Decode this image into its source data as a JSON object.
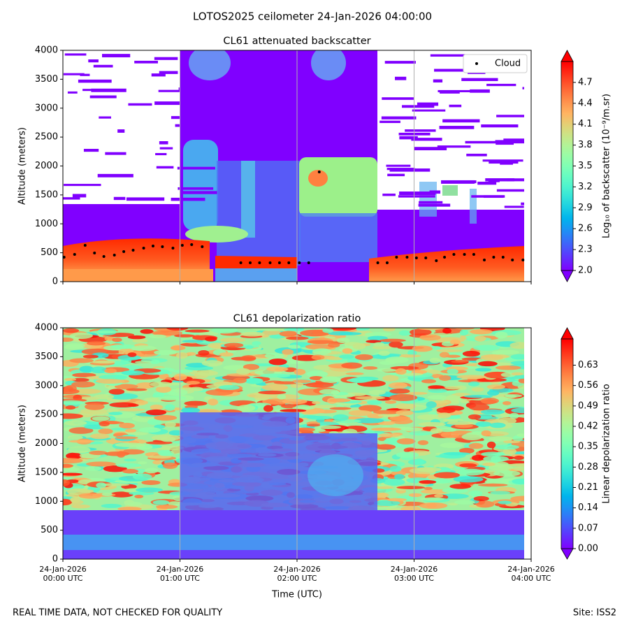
{
  "title": "LOTOS2025 ceilometer 24-Jan-2026 04:00:00",
  "note": "REAL TIME DATA, NOT CHECKED FOR QUALITY",
  "site": "Site: ISS2",
  "chart_data": [
    {
      "type": "scatter",
      "title": "CL61 attenuated backscatter",
      "y_label": "Altitude (meters)",
      "xlim": [
        0,
        4
      ],
      "xticks": [
        0,
        1,
        2,
        3,
        4
      ],
      "ylim": [
        0,
        4000
      ],
      "yticks": [
        0,
        500,
        1000,
        1500,
        2000,
        2500,
        3000,
        3500,
        4000
      ],
      "grid": "x",
      "legend": "upper right",
      "series": [
        {
          "name": "Cloud",
          "color": "#000000",
          "x": [
            0.01,
            0.1,
            0.19,
            0.27,
            0.35,
            0.44,
            0.52,
            0.6,
            0.69,
            0.77,
            0.85,
            0.94,
            1.02,
            1.1,
            1.19,
            1.52,
            1.6,
            1.68,
            1.77,
            1.85,
            1.93,
            2.02,
            2.1,
            2.19,
            2.69,
            2.77,
            2.85,
            2.94,
            3.02,
            3.1,
            3.19,
            3.26,
            3.34,
            3.43,
            3.51,
            3.6,
            3.68,
            3.76,
            3.84,
            3.93
          ],
          "values": [
            423,
            471,
            628,
            495,
            435,
            459,
            520,
            544,
            580,
            616,
            604,
            580,
            628,
            640,
            604,
            326,
            326,
            326,
            326,
            326,
            326,
            326,
            326,
            1897,
            326,
            326,
            423,
            423,
            411,
            411,
            363,
            423,
            471,
            471,
            471,
            375,
            423,
            423,
            375,
            375
          ]
        }
      ],
      "colorbar": {
        "label": "Log₁₀ of backscatter (10⁻⁹/m.sr)",
        "lim": [
          2,
          5
        ],
        "ticks": [
          {
            "value": 2,
            "label": "2.0"
          },
          2.3,
          2.6,
          2.9,
          3.2,
          3.5,
          3.8,
          4.1,
          4.4,
          4.7
        ]
      }
    },
    {
      "type": "heatmap",
      "title": "CL61 depolarization ratio",
      "y_label": "Altitude (meters)",
      "x_label": "Time (UTC)",
      "xlim": [
        0,
        4
      ],
      "xticks": [
        {
          "value": 0,
          "label": "24-Jan-2026\n00:00 UTC"
        },
        {
          "value": 1,
          "label": "24-Jan-2026\n01:00 UTC"
        },
        {
          "value": 2,
          "label": "24-Jan-2026\n02:00 UTC"
        },
        {
          "value": 3,
          "label": "24-Jan-2026\n03:00 UTC"
        },
        {
          "value": 4,
          "label": "24-Jan-2026\n04:00 UTC"
        }
      ],
      "ylim": [
        0,
        4000
      ],
      "yticks": [
        0,
        500,
        1000,
        1500,
        2000,
        2500,
        3000,
        3500,
        4000
      ],
      "grid": "x",
      "colorbar": {
        "label": "Linear depolarization ratio",
        "lim": [
          0,
          0.72
        ],
        "ticks": [
          {
            "value": 0,
            "label": "0.00"
          },
          0.07,
          0.14,
          0.21,
          0.28,
          0.35,
          0.42,
          0.49,
          0.56,
          0.63
        ]
      }
    }
  ]
}
